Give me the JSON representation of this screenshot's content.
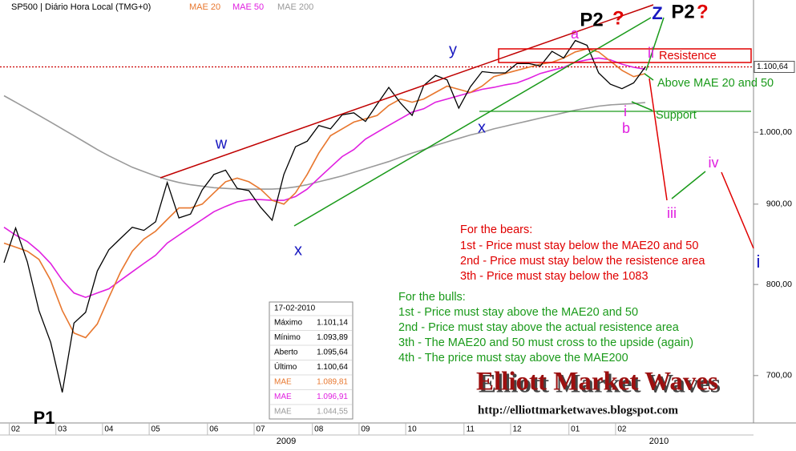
{
  "chart_data": {
    "type": "line",
    "title": "SP500 | Diário Hora Local (TMG+0)",
    "log_scale": true,
    "ylim": [
      653,
      1214
    ],
    "yticks": [
      {
        "value": 1000,
        "label": "1.000,00"
      },
      {
        "value": 900,
        "label": "900,00"
      },
      {
        "value": 800,
        "label": "800,00"
      },
      {
        "value": 700,
        "label": "700,00"
      }
    ],
    "categories": [
      null,
      "02",
      null,
      null,
      null,
      "03",
      null,
      null,
      null,
      "04",
      null,
      null,
      null,
      "05",
      null,
      null,
      null,
      null,
      "06",
      null,
      null,
      null,
      "07",
      null,
      null,
      null,
      null,
      "08",
      null,
      null,
      null,
      "09",
      null,
      null,
      null,
      "10",
      null,
      null,
      null,
      null,
      "11",
      null,
      null,
      null,
      "12",
      null,
      null,
      null,
      null,
      "01",
      null,
      null,
      null,
      "02",
      null,
      null
    ],
    "year_labels": [
      "2009",
      "2010"
    ],
    "price": {
      "color": "#000000",
      "values": [
        826,
        869,
        827,
        770,
        735,
        683,
        756,
        768,
        816,
        842,
        856,
        870,
        866,
        877,
        929,
        882,
        887,
        919,
        940,
        946,
        921,
        918,
        896,
        879,
        940,
        979,
        987,
        1010,
        1005,
        1026,
        1029,
        1016,
        1042,
        1068,
        1044,
        1025,
        1071,
        1087,
        1080,
        1036,
        1069,
        1093,
        1091,
        1091,
        1106,
        1106,
        1102,
        1126,
        1115,
        1144,
        1136,
        1091,
        1073,
        1066,
        1075,
        1100.64
      ]
    },
    "last_price": {
      "value": 1100.64,
      "label": "1.100,64",
      "color": "#cc0000"
    },
    "series": [
      {
        "name": "MAE 20",
        "color": "#e8772e",
        "values": [
          850,
          845,
          840,
          830,
          805,
          770,
          745,
          740,
          755,
          785,
          815,
          840,
          855,
          865,
          880,
          895,
          895,
          900,
          915,
          930,
          935,
          930,
          920,
          905,
          900,
          915,
          940,
          970,
          995,
          1005,
          1015,
          1020,
          1025,
          1040,
          1050,
          1045,
          1050,
          1060,
          1070,
          1065,
          1060,
          1070,
          1085,
          1090,
          1095,
          1100,
          1105,
          1108,
          1115,
          1125,
          1130,
          1125,
          1110,
          1095,
          1085,
          1089.81
        ]
      },
      {
        "name": "MAE 50",
        "color": "#e020e0",
        "values": [
          870,
          860,
          852,
          840,
          825,
          805,
          790,
          785,
          790,
          795,
          805,
          815,
          825,
          835,
          850,
          860,
          870,
          880,
          890,
          897,
          903,
          906,
          906,
          905,
          905,
          910,
          920,
          935,
          950,
          965,
          975,
          990,
          1000,
          1010,
          1020,
          1030,
          1035,
          1045,
          1050,
          1055,
          1060,
          1065,
          1068,
          1072,
          1075,
          1082,
          1090,
          1095,
          1100,
          1108,
          1112,
          1115,
          1112,
          1105,
          1100,
          1096.91
        ]
      },
      {
        "name": "MAE 200",
        "color": "#9a9a9a",
        "values": [
          1055,
          1045,
          1035,
          1025,
          1015,
          1005,
          995,
          985,
          975,
          966,
          958,
          950,
          944,
          938,
          933,
          929,
          926,
          924,
          922,
          921,
          920,
          920,
          920,
          920,
          921,
          923,
          926,
          930,
          934,
          938,
          943,
          948,
          953,
          958,
          964,
          970,
          975,
          981,
          986,
          991,
          996,
          1000,
          1005,
          1009,
          1013,
          1017,
          1021,
          1025,
          1029,
          1033,
          1036,
          1039,
          1041,
          1042,
          1043,
          1044.55
        ]
      }
    ],
    "info_box": {
      "date": "17-02-2010",
      "rows": [
        [
          "Máximo",
          "1.101,14"
        ],
        [
          "Mínimo",
          "1.093,89"
        ],
        [
          "Aberto",
          "1.095,64"
        ],
        [
          "Último",
          "1.100,64"
        ],
        [
          "MAE",
          "1.089,81"
        ],
        [
          "MAE",
          "1.096,91"
        ],
        [
          "MAE",
          "1.044,55"
        ]
      ]
    },
    "annotations": {
      "waves": [
        "P1",
        "P2",
        "?",
        "w",
        "x",
        "y",
        "x",
        "a",
        "b",
        "i",
        "ii",
        "Z",
        "P2",
        "?",
        "iii",
        "iv",
        "i"
      ],
      "resistance": "Resistence",
      "above": "Above MAE 20 and 50",
      "support": "Support",
      "bears": [
        "For the bears:",
        "1st - Price must stay below the MAE20 and 50",
        "2nd - Price must stay below the resistence area",
        "3th - Price must stay below the 1083"
      ],
      "bulls": [
        "For the bulls:",
        "1st - Price must stay above the MAE20 and 50",
        "2nd - Price must stay above the actual resistence area",
        "3th - The MAE20 and 50 must cross to the upside (again)",
        "4th - The price must stay above the MAE200"
      ],
      "brand": "Elliott Market Waves",
      "url": "http://elliottmarketwaves.blogspot.com"
    }
  }
}
